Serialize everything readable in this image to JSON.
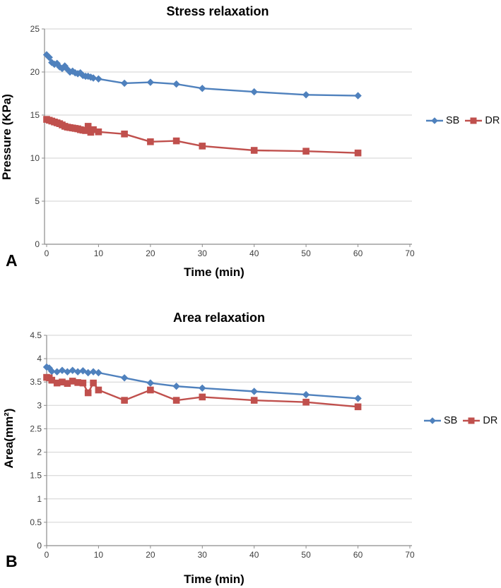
{
  "panels": [
    {
      "letter": "A"
    },
    {
      "letter": "B"
    }
  ],
  "chart_data": [
    {
      "type": "line",
      "title": "Stress relaxation",
      "xlabel": "Time (min)",
      "ylabel": "Pressure (KPa)",
      "xlim": [
        0,
        70
      ],
      "ylim": [
        0,
        25
      ],
      "xticks": [
        0,
        10,
        20,
        30,
        40,
        50,
        60,
        70
      ],
      "yticks": [
        0,
        5,
        10,
        15,
        20,
        25
      ],
      "grid": "horizontal",
      "legend_position": "right",
      "series": [
        {
          "name": "SB",
          "color": "#4f81bd",
          "marker": "diamond",
          "x": [
            0,
            0.5,
            1,
            1.5,
            2,
            2.5,
            3,
            3.5,
            4,
            4.5,
            5,
            5.5,
            6,
            6.5,
            7,
            7.5,
            8,
            8.5,
            9,
            10,
            15,
            20,
            25,
            30,
            40,
            50,
            60
          ],
          "y": [
            22.0,
            21.7,
            21.1,
            20.9,
            21.0,
            20.6,
            20.4,
            20.7,
            20.3,
            20.0,
            20.1,
            19.9,
            19.8,
            19.9,
            19.6,
            19.5,
            19.5,
            19.4,
            19.3,
            19.2,
            18.7,
            18.8,
            18.6,
            18.1,
            17.7,
            17.35,
            17.25
          ]
        },
        {
          "name": "DR",
          "color": "#c0504d",
          "marker": "square",
          "x": [
            0,
            0.5,
            1,
            1.5,
            2,
            2.5,
            3,
            3.5,
            4,
            4.5,
            5,
            5.5,
            6,
            6.5,
            7,
            7.5,
            8,
            8.5,
            9,
            10,
            15,
            20,
            25,
            30,
            40,
            50,
            60
          ],
          "y": [
            14.5,
            14.4,
            14.3,
            14.2,
            14.1,
            14.0,
            13.85,
            13.7,
            13.6,
            13.55,
            13.5,
            13.45,
            13.4,
            13.3,
            13.25,
            13.2,
            13.7,
            13.0,
            13.3,
            13.05,
            12.8,
            11.9,
            12.0,
            11.4,
            10.9,
            10.8,
            10.6
          ]
        }
      ]
    },
    {
      "type": "line",
      "title": "Area relaxation",
      "xlabel": "Time (min)",
      "ylabel": "Area(mm²)",
      "xlim": [
        0,
        70
      ],
      "ylim": [
        0,
        4.5
      ],
      "xticks": [
        0,
        10,
        20,
        30,
        40,
        50,
        60,
        70
      ],
      "yticks": [
        0,
        0.5,
        1,
        1.5,
        2,
        2.5,
        3,
        3.5,
        4,
        4.5
      ],
      "grid": "horizontal",
      "legend_position": "right",
      "series": [
        {
          "name": "SB",
          "color": "#4f81bd",
          "marker": "diamond",
          "x": [
            0,
            0.5,
            1,
            2,
            3,
            4,
            5,
            6,
            7,
            8,
            9,
            10,
            15,
            20,
            25,
            30,
            40,
            50,
            60
          ],
          "y": [
            3.82,
            3.8,
            3.73,
            3.72,
            3.75,
            3.72,
            3.75,
            3.72,
            3.74,
            3.7,
            3.72,
            3.7,
            3.59,
            3.48,
            3.41,
            3.37,
            3.3,
            3.23,
            3.15
          ]
        },
        {
          "name": "DR",
          "color": "#c0504d",
          "marker": "square",
          "x": [
            0,
            0.5,
            1,
            2,
            3,
            4,
            5,
            6,
            7,
            8,
            9,
            10,
            15,
            20,
            25,
            30,
            40,
            50,
            60
          ],
          "y": [
            3.6,
            3.59,
            3.54,
            3.48,
            3.5,
            3.47,
            3.52,
            3.49,
            3.48,
            3.27,
            3.48,
            3.33,
            3.11,
            3.33,
            3.11,
            3.18,
            3.11,
            3.07,
            2.97
          ]
        }
      ]
    }
  ]
}
